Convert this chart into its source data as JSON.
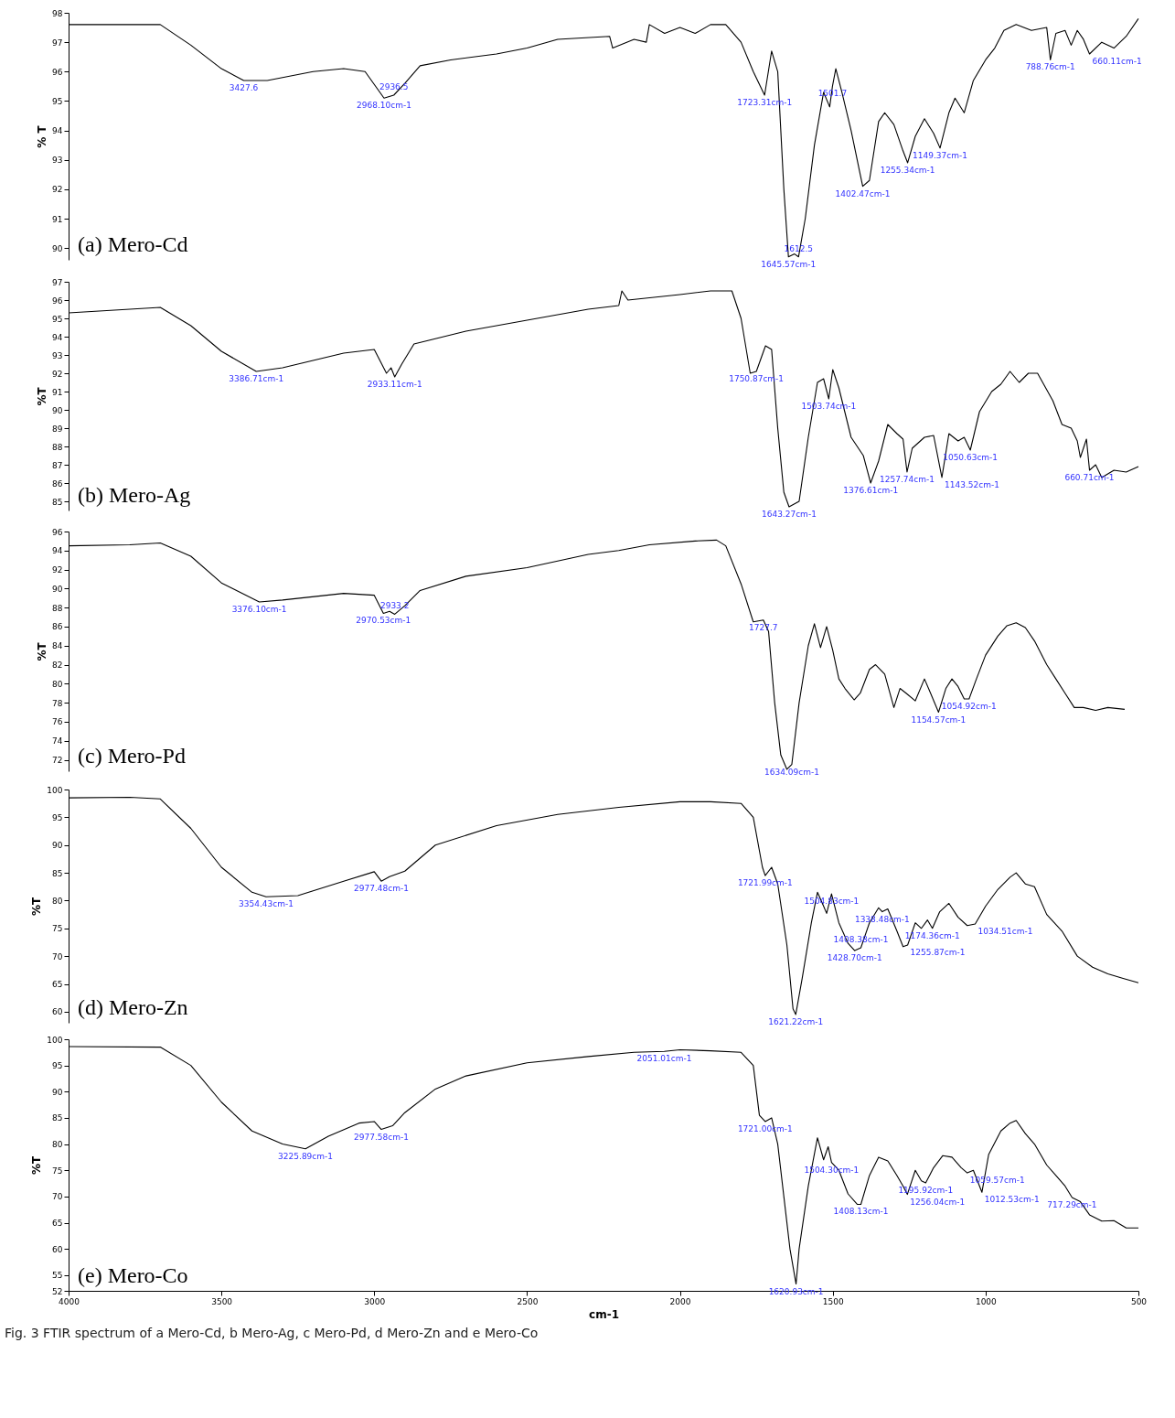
{
  "chart_data": [
    {
      "type": "line",
      "title": "(a) Mero-Cd",
      "ylabel": "% T",
      "color": "#000000",
      "tick_labels": "y",
      "grid": false,
      "xlim": [
        4000,
        500
      ],
      "ylim": [
        89.6,
        98
      ],
      "yticks": [
        90,
        91,
        92,
        93,
        94,
        95,
        96,
        97,
        98
      ],
      "x": [
        4000,
        3700,
        3600,
        3500,
        3427,
        3350,
        3200,
        3100,
        3030,
        2968,
        2936,
        2900,
        2850,
        2750,
        2600,
        2500,
        2400,
        2230,
        2220,
        2150,
        2110,
        2100,
        2050,
        2000,
        1950,
        1900,
        1850,
        1800,
        1760,
        1723,
        1700,
        1680,
        1660,
        1645,
        1625,
        1612,
        1590,
        1560,
        1530,
        1510,
        1501,
        1490,
        1470,
        1440,
        1410,
        1402,
        1380,
        1350,
        1330,
        1300,
        1270,
        1255,
        1230,
        1200,
        1170,
        1149,
        1120,
        1100,
        1070,
        1040,
        1000,
        970,
        940,
        900,
        850,
        800,
        788,
        770,
        740,
        720,
        700,
        680,
        660,
        620,
        580,
        540,
        500
      ],
      "values": [
        97.6,
        97.6,
        96.9,
        96.1,
        95.7,
        95.7,
        96.0,
        96.1,
        96.0,
        95.1,
        95.2,
        95.6,
        96.2,
        96.4,
        96.6,
        96.8,
        97.1,
        97.2,
        96.8,
        97.1,
        97.0,
        97.6,
        97.3,
        97.5,
        97.3,
        97.6,
        97.6,
        97.0,
        96.0,
        95.2,
        96.7,
        96.0,
        92.0,
        89.7,
        89.8,
        89.7,
        91.0,
        93.5,
        95.3,
        94.8,
        95.5,
        96.1,
        95.3,
        94.0,
        92.5,
        92.1,
        92.3,
        94.3,
        94.6,
        94.2,
        93.3,
        92.9,
        93.8,
        94.4,
        93.9,
        93.4,
        94.6,
        95.1,
        94.6,
        95.7,
        96.4,
        96.8,
        97.4,
        97.6,
        97.4,
        97.5,
        96.4,
        97.3,
        97.4,
        96.9,
        97.4,
        97.1,
        96.6,
        97.0,
        96.8,
        97.2,
        97.8
      ],
      "annotations": [
        {
          "text": "3427.6",
          "x": 3427,
          "y": 95.7
        },
        {
          "text": "2968.10cm-1",
          "x": 2968,
          "y": 95.1
        },
        {
          "text": "2936.5",
          "x": 2936,
          "y": 95.2
        },
        {
          "text": "1723.31cm-1",
          "x": 1723,
          "y": 95.2
        },
        {
          "text": "1501.7",
          "x": 1501,
          "y": 95.5
        },
        {
          "text": "1645.57cm-1",
          "x": 1645,
          "y": 89.7
        },
        {
          "text": "1612.5",
          "x": 1612,
          "y": 89.7
        },
        {
          "text": "1402.47cm-1",
          "x": 1402,
          "y": 92.1
        },
        {
          "text": "1255.34cm-1",
          "x": 1255,
          "y": 92.9
        },
        {
          "text": "1149.37cm-1",
          "x": 1149,
          "y": 93.4
        },
        {
          "text": "788.76cm-1",
          "x": 788,
          "y": 96.4
        },
        {
          "text": "660.11cm-1",
          "x": 660,
          "y": 96.6
        }
      ]
    },
    {
      "type": "line",
      "title": "(b) Mero-Ag",
      "ylabel": "%T",
      "color": "#000000",
      "tick_labels": "y",
      "grid": false,
      "xlim": [
        4000,
        500
      ],
      "ylim": [
        84.5,
        97
      ],
      "yticks": [
        85,
        86,
        87,
        88,
        89,
        90,
        91,
        92,
        93,
        94,
        95,
        96,
        97
      ],
      "x": [
        4000,
        3900,
        3700,
        3600,
        3500,
        3386,
        3300,
        3100,
        3000,
        2960,
        2945,
        2933,
        2910,
        2870,
        2700,
        2500,
        2300,
        2200,
        2190,
        2170,
        2000,
        1900,
        1830,
        1800,
        1770,
        1750,
        1720,
        1700,
        1680,
        1660,
        1643,
        1610,
        1580,
        1550,
        1530,
        1513,
        1500,
        1480,
        1440,
        1400,
        1376,
        1350,
        1320,
        1290,
        1270,
        1257,
        1240,
        1200,
        1170,
        1143,
        1120,
        1090,
        1070,
        1050,
        1020,
        980,
        950,
        920,
        890,
        860,
        830,
        780,
        750,
        720,
        700,
        690,
        670,
        660,
        640,
        620,
        580,
        540,
        500
      ],
      "values": [
        95.3,
        95.4,
        95.6,
        94.6,
        93.2,
        92.1,
        92.3,
        93.1,
        93.3,
        92.0,
        92.3,
        91.8,
        92.5,
        93.6,
        94.3,
        94.9,
        95.5,
        95.7,
        96.5,
        96.0,
        96.3,
        96.5,
        96.5,
        95.0,
        92.0,
        92.1,
        93.5,
        93.3,
        89.0,
        85.5,
        84.7,
        85.0,
        88.5,
        91.5,
        91.7,
        90.6,
        92.2,
        91.2,
        88.5,
        87.5,
        86.0,
        87.2,
        89.2,
        88.7,
        88.4,
        86.6,
        87.9,
        88.5,
        88.6,
        86.3,
        88.7,
        88.3,
        88.5,
        87.8,
        89.9,
        91.0,
        91.4,
        92.1,
        91.5,
        92.0,
        92.0,
        90.5,
        89.2,
        89.0,
        88.3,
        87.4,
        88.4,
        86.7,
        87.0,
        86.3,
        86.7,
        86.6,
        86.9
      ],
      "annotations": [
        {
          "text": "3386.71cm-1",
          "x": 3386,
          "y": 92.1
        },
        {
          "text": "2933.11cm-1",
          "x": 2933,
          "y": 91.8
        },
        {
          "text": "1750.87cm-1",
          "x": 1750,
          "y": 92.1
        },
        {
          "text": "1503.74cm-1",
          "x": 1513,
          "y": 90.6
        },
        {
          "text": "1643.27cm-1",
          "x": 1643,
          "y": 84.7
        },
        {
          "text": "1376.61cm-1",
          "x": 1376,
          "y": 86.0
        },
        {
          "text": "1257.74cm-1",
          "x": 1257,
          "y": 86.6
        },
        {
          "text": "1143.52cm-1",
          "x": 1143,
          "y": 86.3
        },
        {
          "text": "1050.63cm-1",
          "x": 1050,
          "y": 87.8
        },
        {
          "text": "660.71cm-1",
          "x": 660,
          "y": 86.7
        }
      ]
    },
    {
      "type": "line",
      "title": "(c) Mero-Pd",
      "ylabel": "%T",
      "color": "#000000",
      "tick_labels": "y",
      "grid": false,
      "xlim": [
        4000,
        500
      ],
      "ylim": [
        70.8,
        96
      ],
      "yticks": [
        72,
        74,
        76,
        78,
        80,
        82,
        84,
        86,
        88,
        90,
        92,
        94,
        96
      ],
      "x": [
        4000,
        3800,
        3700,
        3600,
        3500,
        3376,
        3300,
        3100,
        3000,
        2970,
        2950,
        2933,
        2900,
        2850,
        2700,
        2500,
        2300,
        2200,
        2100,
        1950,
        1880,
        1850,
        1800,
        1760,
        1727,
        1710,
        1690,
        1670,
        1650,
        1634,
        1610,
        1580,
        1560,
        1540,
        1520,
        1500,
        1480,
        1460,
        1430,
        1410,
        1380,
        1360,
        1330,
        1300,
        1280,
        1260,
        1230,
        1200,
        1180,
        1154,
        1130,
        1110,
        1090,
        1070,
        1054,
        1030,
        1000,
        960,
        930,
        900,
        870,
        840,
        800,
        770,
        740,
        710,
        680,
        640,
        600,
        545
      ],
      "values": [
        94.5,
        94.6,
        94.8,
        93.4,
        90.6,
        88.6,
        88.8,
        89.5,
        89.3,
        87.4,
        87.6,
        87.3,
        88.2,
        89.8,
        91.3,
        92.2,
        93.6,
        94.0,
        94.6,
        95.0,
        95.1,
        94.5,
        90.5,
        86.5,
        86.7,
        85.5,
        78.0,
        72.5,
        71.0,
        71.5,
        78.0,
        84.0,
        86.3,
        83.8,
        86.0,
        83.5,
        80.5,
        79.5,
        78.3,
        79.0,
        81.5,
        82.0,
        81.0,
        77.5,
        79.5,
        79.0,
        78.2,
        80.5,
        79.0,
        77.0,
        79.5,
        80.5,
        79.7,
        78.4,
        78.4,
        80.5,
        83.0,
        85.0,
        86.1,
        86.4,
        85.9,
        84.5,
        82.0,
        80.5,
        79.0,
        77.5,
        77.5,
        77.2,
        77.5,
        77.3
      ],
      "annotations": [
        {
          "text": "3376.10cm-1",
          "x": 3376,
          "y": 88.6
        },
        {
          "text": "2970.53cm-1",
          "x": 2970,
          "y": 87.4
        },
        {
          "text": "2933.2",
          "x": 2933,
          "y": 87.3
        },
        {
          "text": "1727.7",
          "x": 1727,
          "y": 86.7
        },
        {
          "text": "1634.09cm-1",
          "x": 1634,
          "y": 71.5
        },
        {
          "text": "1154.57cm-1",
          "x": 1154,
          "y": 77.0
        },
        {
          "text": "1054.92cm-1",
          "x": 1054,
          "y": 78.4
        }
      ]
    },
    {
      "type": "line",
      "title": "(d) Mero-Zn",
      "ylabel": "%T",
      "color": "#000000",
      "tick_labels": "y",
      "grid": false,
      "xlim": [
        4000,
        500
      ],
      "ylim": [
        58,
        100
      ],
      "yticks": [
        60,
        65,
        70,
        75,
        80,
        85,
        90,
        95,
        100
      ],
      "x": [
        4000,
        3800,
        3700,
        3600,
        3500,
        3400,
        3354,
        3250,
        3100,
        3000,
        2977,
        2950,
        2900,
        2800,
        2600,
        2400,
        2200,
        2000,
        1900,
        1800,
        1760,
        1730,
        1721,
        1700,
        1680,
        1650,
        1630,
        1621,
        1600,
        1570,
        1550,
        1530,
        1520,
        1504,
        1480,
        1450,
        1428,
        1408,
        1380,
        1350,
        1338,
        1320,
        1290,
        1270,
        1255,
        1230,
        1210,
        1190,
        1174,
        1150,
        1120,
        1090,
        1060,
        1034,
        1000,
        960,
        920,
        900,
        870,
        840,
        800,
        750,
        700,
        650,
        600,
        550,
        500
      ],
      "values": [
        98.5,
        98.6,
        98.3,
        93.0,
        86.0,
        81.5,
        80.7,
        80.9,
        83.5,
        85.2,
        83.5,
        84.3,
        85.3,
        90.0,
        93.5,
        95.5,
        96.8,
        97.8,
        97.8,
        97.5,
        95.0,
        86.0,
        84.5,
        86.0,
        83.0,
        72.0,
        60.5,
        59.5,
        66.0,
        76.0,
        81.5,
        79.0,
        77.7,
        81.2,
        76.0,
        72.3,
        71.0,
        71.5,
        76.0,
        78.7,
        78.0,
        78.5,
        74.5,
        71.7,
        72.0,
        76.0,
        75.0,
        76.5,
        75.0,
        78.0,
        79.5,
        77.0,
        75.5,
        75.8,
        79.0,
        82.0,
        84.2,
        85.0,
        83.0,
        82.5,
        77.5,
        74.5,
        70.0,
        68.0,
        66.8,
        66.0,
        65.2
      ],
      "annotations": [
        {
          "text": "3354.43cm-1",
          "x": 3354,
          "y": 80.7
        },
        {
          "text": "2977.48cm-1",
          "x": 2977,
          "y": 83.5
        },
        {
          "text": "1721.99cm-1",
          "x": 1721,
          "y": 84.5
        },
        {
          "text": "1621.22cm-1",
          "x": 1621,
          "y": 59.5
        },
        {
          "text": "1504.83cm-1",
          "x": 1504,
          "y": 81.2
        },
        {
          "text": "1338.48cm-1",
          "x": 1338,
          "y": 78.0
        },
        {
          "text": "1428.70cm-1",
          "x": 1428,
          "y": 71.0
        },
        {
          "text": "1408.38cm-1",
          "x": 1408,
          "y": 71.5
        },
        {
          "text": "1255.87cm-1",
          "x": 1255,
          "y": 72.0
        },
        {
          "text": "1174.36cm-1",
          "x": 1174,
          "y": 75.0
        },
        {
          "text": "1034.51cm-1",
          "x": 1034,
          "y": 75.8
        }
      ]
    },
    {
      "type": "line",
      "title": "(e) Mero-Co",
      "ylabel": "%T",
      "xlabel": "cm-1",
      "color": "#000000",
      "grid": false,
      "xlim": [
        4000,
        500
      ],
      "ylim": [
        52,
        100
      ],
      "yticks": [
        52,
        55,
        60,
        65,
        70,
        75,
        80,
        85,
        90,
        95,
        100
      ],
      "xticks": [
        4000,
        3500,
        3000,
        2500,
        2000,
        1500,
        1000,
        500
      ],
      "x": [
        4000,
        3700,
        3600,
        3500,
        3400,
        3300,
        3225,
        3150,
        3050,
        3000,
        2977,
        2940,
        2900,
        2800,
        2700,
        2500,
        2300,
        2150,
        2051,
        2000,
        1900,
        1800,
        1760,
        1740,
        1721,
        1700,
        1680,
        1660,
        1640,
        1620,
        1610,
        1580,
        1550,
        1530,
        1515,
        1504,
        1480,
        1450,
        1420,
        1408,
        1380,
        1350,
        1320,
        1290,
        1270,
        1256,
        1230,
        1210,
        1196,
        1170,
        1140,
        1110,
        1080,
        1060,
        1040,
        1012,
        990,
        950,
        920,
        900,
        870,
        840,
        800,
        770,
        740,
        717,
        690,
        660,
        620,
        580,
        540,
        500
      ],
      "values": [
        98.6,
        98.5,
        95.0,
        88.0,
        82.5,
        80.0,
        79.1,
        81.5,
        84.0,
        84.3,
        82.8,
        83.5,
        86.0,
        90.5,
        93.0,
        95.5,
        96.7,
        97.5,
        97.7,
        98.0,
        97.8,
        97.5,
        95.0,
        85.5,
        84.3,
        85.0,
        80.0,
        70.0,
        60.0,
        53.3,
        60.0,
        72.0,
        81.2,
        77.0,
        79.5,
        76.5,
        75.0,
        70.5,
        68.5,
        68.5,
        74.0,
        77.5,
        76.8,
        74.0,
        72.0,
        70.4,
        75.0,
        73.0,
        72.6,
        75.5,
        77.8,
        77.5,
        75.5,
        74.5,
        75.0,
        70.8,
        78.0,
        82.5,
        84.0,
        84.5,
        82.0,
        80.0,
        76.0,
        74.0,
        72.0,
        69.8,
        69.0,
        66.5,
        65.3,
        65.4,
        64.0,
        64.0
      ],
      "annotations": [
        {
          "text": "3225.89cm-1",
          "x": 3225,
          "y": 79.1
        },
        {
          "text": "2977.58cm-1",
          "x": 2977,
          "y": 82.8
        },
        {
          "text": "2051.01cm-1",
          "x": 2051,
          "y": 97.7
        },
        {
          "text": "1721.00cm-1",
          "x": 1721,
          "y": 84.3
        },
        {
          "text": "1620.93cm-1",
          "x": 1620,
          "y": 53.3
        },
        {
          "text": "1504.30cm-1",
          "x": 1504,
          "y": 76.5
        },
        {
          "text": "1408.13cm-1",
          "x": 1408,
          "y": 68.5
        },
        {
          "text": "1256.04cm-1",
          "x": 1256,
          "y": 70.4
        },
        {
          "text": "1195.92cm-1",
          "x": 1196,
          "y": 72.6
        },
        {
          "text": "1059.57cm-1",
          "x": 1060,
          "y": 74.5
        },
        {
          "text": "1012.53cm-1",
          "x": 1012,
          "y": 70.8
        },
        {
          "text": "717.29cm-1",
          "x": 717,
          "y": 69.8
        },
        "Fig. 3 FTIR spectrum of a Mero-Cd, b Mero-Ag, c Mero-Pd, d Mero-Zn and e Mero-Co"
      ]
    }
  ]
}
